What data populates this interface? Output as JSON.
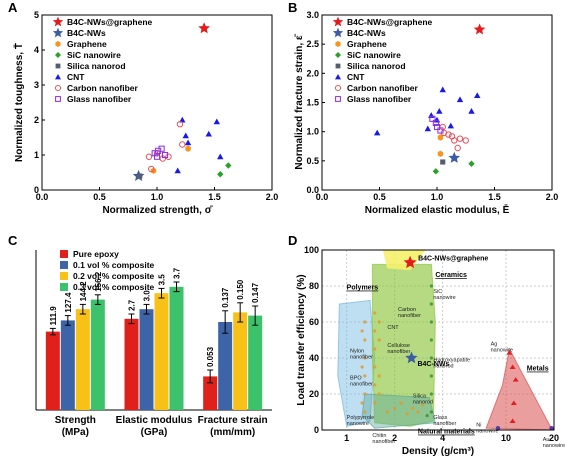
{
  "legend_colors": {
    "B4C-NWs@graphene": "#e41a1c",
    "B4C-NWs": "#3b5ba5",
    "Graphene": "#f7941d",
    "SiC nanowire": "#2ca02c",
    "Silica nanorod": "#555e6b",
    "CNT": "#1a1ae6",
    "Carbon nanofiber": "#e8505b",
    "Glass nanofiber": "#8a2be2"
  },
  "chart_data": [
    {
      "panel": "A",
      "type": "scatter",
      "xlabel": "Normalized strength, σ̄",
      "ylabel": "Normalized toughness, T̄",
      "xlim": [
        0.0,
        2.0
      ],
      "ylim": [
        0,
        5
      ],
      "xticks": [
        "0.0",
        "0.5",
        "1.0",
        "1.5",
        "2.0"
      ],
      "yticks": [
        "0",
        "1",
        "2",
        "3",
        "4",
        "5"
      ],
      "legend": [
        "B4C-NWs@graphene",
        "B4C-NWs",
        "Graphene",
        "SiC nanowire",
        "Silica nanorod",
        "CNT",
        "Carbon nanofiber",
        "Glass nanofiber"
      ],
      "series": [
        {
          "name": "B4C-NWs@graphene",
          "marker": "star",
          "points": [
            [
              1.41,
              4.62
            ]
          ]
        },
        {
          "name": "B4C-NWs",
          "marker": "star",
          "points": [
            [
              0.84,
              0.4
            ]
          ]
        },
        {
          "name": "Graphene",
          "marker": "hexagon",
          "points": [
            [
              0.97,
              0.55
            ],
            [
              1.27,
              1.18
            ]
          ]
        },
        {
          "name": "SiC nanowire",
          "marker": "diamond",
          "points": [
            [
              1.55,
              0.45
            ],
            [
              1.62,
              0.7
            ]
          ]
        },
        {
          "name": "Silica nanorod",
          "marker": "square",
          "points": [
            [
              0.85,
              0.4
            ]
          ]
        },
        {
          "name": "CNT",
          "marker": "triangle",
          "points": [
            [
              1.18,
              0.55
            ],
            [
              1.25,
              1.55
            ],
            [
              1.27,
              1.35
            ],
            [
              1.45,
              1.6
            ],
            [
              1.52,
              1.95
            ],
            [
              1.55,
              0.95
            ],
            [
              1.22,
              2.0
            ]
          ]
        },
        {
          "name": "Carbon nanofiber",
          "marker": "circle-open",
          "points": [
            [
              0.93,
              0.95
            ],
            [
              1.0,
              1.05
            ],
            [
              1.05,
              0.9
            ],
            [
              1.1,
              0.95
            ],
            [
              1.2,
              1.88
            ],
            [
              1.22,
              1.3
            ],
            [
              0.95,
              0.6
            ]
          ]
        },
        {
          "name": "Glass nanofiber",
          "marker": "square-open",
          "points": [
            [
              0.98,
              1.05
            ],
            [
              1.01,
              1.12
            ],
            [
              1.04,
              1.18
            ],
            [
              1.07,
              1.0
            ],
            [
              1.0,
              0.95
            ]
          ]
        }
      ]
    },
    {
      "panel": "B",
      "type": "scatter",
      "xlabel": "Normalized elastic modulus, Ē",
      "ylabel": "Normalized fracture strain, ε̄",
      "xlim": [
        0.0,
        2.0
      ],
      "ylim": [
        0.0,
        3.0
      ],
      "xticks": [
        "0.0",
        "0.5",
        "1.0",
        "1.5",
        "2.0"
      ],
      "yticks": [
        "0.0",
        "0.5",
        "1.0",
        "1.5",
        "2.0",
        "2.5",
        "3.0"
      ],
      "legend": [
        "B4C-NWs@graphene",
        "B4C-NWs",
        "Graphene",
        "SiC nanowire",
        "Silica nanorod",
        "CNT",
        "Carbon nanofiber",
        "Glass nanofiber"
      ],
      "series": [
        {
          "name": "B4C-NWs@graphene",
          "marker": "star",
          "points": [
            [
              1.37,
              2.75
            ]
          ]
        },
        {
          "name": "B4C-NWs",
          "marker": "star",
          "points": [
            [
              1.15,
              0.55
            ]
          ]
        },
        {
          "name": "Graphene",
          "marker": "hexagon",
          "points": [
            [
              1.03,
              0.62
            ],
            [
              1.03,
              0.9
            ]
          ]
        },
        {
          "name": "SiC nanowire",
          "marker": "diamond",
          "points": [
            [
              0.99,
              0.32
            ],
            [
              1.3,
              0.45
            ]
          ]
        },
        {
          "name": "Silica nanorod",
          "marker": "square",
          "points": [
            [
              1.05,
              0.48
            ]
          ]
        },
        {
          "name": "CNT",
          "marker": "triangle",
          "points": [
            [
              0.48,
              0.98
            ],
            [
              0.92,
              1.05
            ],
            [
              1.0,
              1.2
            ],
            [
              1.02,
              1.35
            ],
            [
              1.05,
              1.72
            ],
            [
              1.12,
              1.1
            ],
            [
              1.2,
              1.55
            ],
            [
              1.3,
              1.35
            ],
            [
              1.35,
              1.62
            ],
            [
              0.95,
              1.28
            ]
          ]
        },
        {
          "name": "Carbon nanofiber",
          "marker": "circle-open",
          "points": [
            [
              1.06,
              0.98
            ],
            [
              1.1,
              0.95
            ],
            [
              1.13,
              0.92
            ],
            [
              1.15,
              0.85
            ],
            [
              1.18,
              0.72
            ],
            [
              1.2,
              0.88
            ],
            [
              1.25,
              0.85
            ],
            [
              1.05,
              1.08
            ]
          ]
        },
        {
          "name": "Glass nanofiber",
          "marker": "square-open",
          "points": [
            [
              0.96,
              1.22
            ],
            [
              0.99,
              1.15
            ],
            [
              1.0,
              1.08
            ],
            [
              1.03,
              1.02
            ]
          ]
        }
      ]
    },
    {
      "panel": "C",
      "type": "bar",
      "groups": [
        "Strength (MPa)",
        "Elastic modulus (GPa)",
        "Fracture strain (mm/mm)"
      ],
      "group_line1": [
        "Strength",
        "Elastic modulus",
        "Fracture strain"
      ],
      "group_line2": [
        "(MPa)",
        "(GPa)",
        "(mm/mm)"
      ],
      "series": [
        {
          "name": "Pure epoxy",
          "color": "#e0201b",
          "labels": [
            "111.9",
            "2.7",
            "0.053"
          ],
          "rel": [
            0.49,
            0.57,
            0.21
          ],
          "err": [
            0.02,
            0.03,
            0.04
          ]
        },
        {
          "name": "0.1 vol % composite",
          "color": "#3e64a8",
          "labels": [
            "127.4",
            "3.0",
            "0.137"
          ],
          "rel": [
            0.56,
            0.63,
            0.55
          ],
          "err": [
            0.03,
            0.03,
            0.07
          ]
        },
        {
          "name": "0.2 vol % composite",
          "color": "#f7c118",
          "labels": [
            "144.2",
            "3.5",
            "0.150"
          ],
          "rel": [
            0.63,
            0.73,
            0.61
          ],
          "err": [
            0.03,
            0.03,
            0.06
          ]
        },
        {
          "name": "0.3 vol % composite",
          "color": "#3cc26a",
          "labels": [
            "156.2",
            "3.7",
            "0.147"
          ],
          "rel": [
            0.69,
            0.77,
            0.59
          ],
          "err": [
            0.03,
            0.03,
            0.06
          ]
        }
      ]
    },
    {
      "panel": "D",
      "type": "scatter",
      "xlabel": "Density (g/cm³)",
      "ylabel": "Load transfer efficiency (%)",
      "xscale": "log",
      "xlim": [
        0.7,
        20
      ],
      "ylim": [
        0,
        100
      ],
      "xticks": [
        {
          "v": 1,
          "t": "1"
        },
        {
          "v": 2,
          "t": "2"
        },
        {
          "v": 4,
          "t": "4"
        },
        {
          "v": 10,
          "t": "10"
        },
        {
          "v": 20,
          "t": "20"
        }
      ],
      "yticks": [
        "0",
        "20",
        "40",
        "60",
        "80",
        "100"
      ],
      "highlight": {
        "label": "B4C-NWs@graphene",
        "x": 2.5,
        "y": 93
      },
      "b4c_nws": {
        "label": "B4C-NWs",
        "x": 2.55,
        "y": 40
      },
      "regions": [
        {
          "name": "Polymers",
          "color": "#6fb7e3"
        },
        {
          "name": "Ceramics",
          "color": "#8dc63f"
        },
        {
          "name": "Natural materials",
          "color": "#5fa8a0"
        },
        {
          "name": "Metals",
          "color": "#d94f4f"
        }
      ],
      "annotations": [
        {
          "t": "Carbon",
          "t2": "nanofiber",
          "x": 2.1,
          "y": 66
        },
        {
          "t": "CNT",
          "x": 1.8,
          "y": 56
        },
        {
          "t": "Cellulose",
          "t2": "nanofiber",
          "x": 1.8,
          "y": 46
        },
        {
          "t": "Nylon",
          "t2": "nanofiber",
          "x": 1.05,
          "y": 43
        },
        {
          "t": "BPO",
          "t2": "nanofiber",
          "x": 1.05,
          "y": 28
        },
        {
          "t": "Polypyrrole",
          "t2": "nanowire",
          "x": 1.0,
          "y": 6
        },
        {
          "t": "Chitin",
          "t2": "nanofiber",
          "x": 1.45,
          "y": -4
        },
        {
          "t": "SiC",
          "t2": "nanowire",
          "x": 3.5,
          "y": 76
        },
        {
          "t": "Hydroxyapatite",
          "t2": "nanorod",
          "x": 3.5,
          "y": 38
        },
        {
          "t": "Silica",
          "t2": "nanorod",
          "x": 2.6,
          "y": 18
        },
        {
          "t": "Glass",
          "t2": "nanofiber",
          "x": 3.5,
          "y": 6
        },
        {
          "t": "Ag",
          "t2": "nanowire",
          "x": 8.0,
          "y": 47
        },
        {
          "t": "Ni",
          "t2": "nanowire",
          "x": 6.5,
          "y": 2
        },
        {
          "t": "Au",
          "t2": "nanowire",
          "x": 17.0,
          "y": -6
        }
      ]
    }
  ]
}
